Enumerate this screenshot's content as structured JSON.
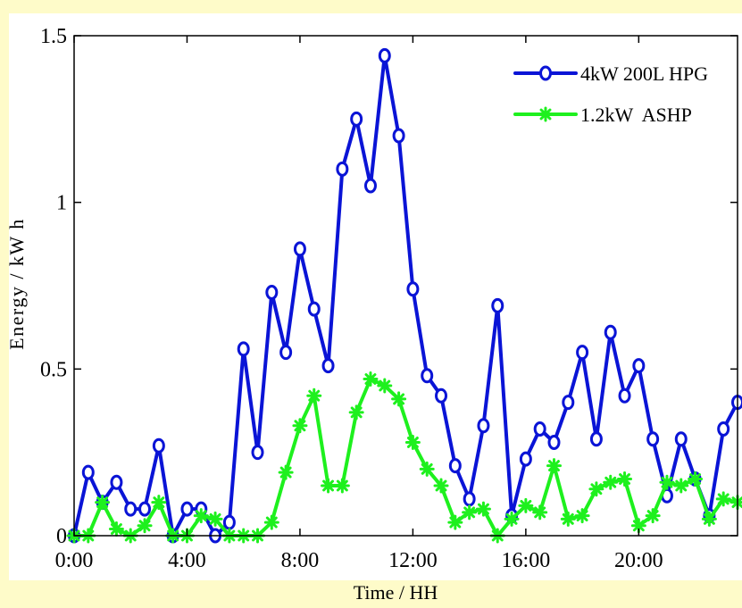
{
  "chart_data": {
    "type": "line",
    "title": "",
    "xlabel": "Time / HH",
    "ylabel": "Energy / kW h",
    "xlim": [
      0,
      23.5
    ],
    "ylim": [
      0,
      1.5
    ],
    "x_ticks": [
      0,
      4,
      8,
      12,
      16,
      20
    ],
    "x_tick_labels": [
      "0:00",
      "4:00",
      "8:00",
      "12:00",
      "16:00",
      "20:00"
    ],
    "y_ticks": [
      0,
      0.5,
      1,
      1.5
    ],
    "y_tick_labels": [
      "0",
      "0.5",
      "1",
      "1.5"
    ],
    "grid": false,
    "legend_position": "top-right",
    "x": [
      0,
      0.5,
      1,
      1.5,
      2,
      2.5,
      3,
      3.5,
      4,
      4.5,
      5,
      5.5,
      6,
      6.5,
      7,
      7.5,
      8,
      8.5,
      9,
      9.5,
      10,
      10.5,
      11,
      11.5,
      12,
      12.5,
      13,
      13.5,
      14,
      14.5,
      15,
      15.5,
      16,
      16.5,
      17,
      17.5,
      18,
      18.5,
      19,
      19.5,
      20,
      20.5,
      21,
      21.5,
      22,
      22.5,
      23,
      23.5
    ],
    "series": [
      {
        "name": "4kW 200L HPG",
        "color": "#0a14d6",
        "marker": "circle",
        "values": [
          0.0,
          0.19,
          0.1,
          0.16,
          0.08,
          0.08,
          0.27,
          0.0,
          0.08,
          0.08,
          0.0,
          0.04,
          0.56,
          0.25,
          0.73,
          0.55,
          0.86,
          0.68,
          0.51,
          1.1,
          1.25,
          1.05,
          1.44,
          1.2,
          0.74,
          0.48,
          0.42,
          0.21,
          0.11,
          0.33,
          0.69,
          0.06,
          0.23,
          0.32,
          0.28,
          0.4,
          0.55,
          0.29,
          0.61,
          0.42,
          0.51,
          0.29,
          0.12,
          0.29,
          0.17,
          0.06,
          0.32,
          0.4
        ]
      },
      {
        "name": "1.2kW  ASHP",
        "color": "#1ef01e",
        "marker": "asterisk",
        "values": [
          0.0,
          0.0,
          0.1,
          0.02,
          0.0,
          0.03,
          0.1,
          0.0,
          0.0,
          0.06,
          0.05,
          0.0,
          0.0,
          0.0,
          0.04,
          0.19,
          0.33,
          0.42,
          0.15,
          0.15,
          0.37,
          0.47,
          0.45,
          0.41,
          0.28,
          0.2,
          0.15,
          0.04,
          0.07,
          0.08,
          0.0,
          0.05,
          0.09,
          0.07,
          0.21,
          0.05,
          0.06,
          0.14,
          0.16,
          0.17,
          0.03,
          0.06,
          0.16,
          0.15,
          0.17,
          0.05,
          0.11,
          0.1
        ]
      }
    ]
  }
}
